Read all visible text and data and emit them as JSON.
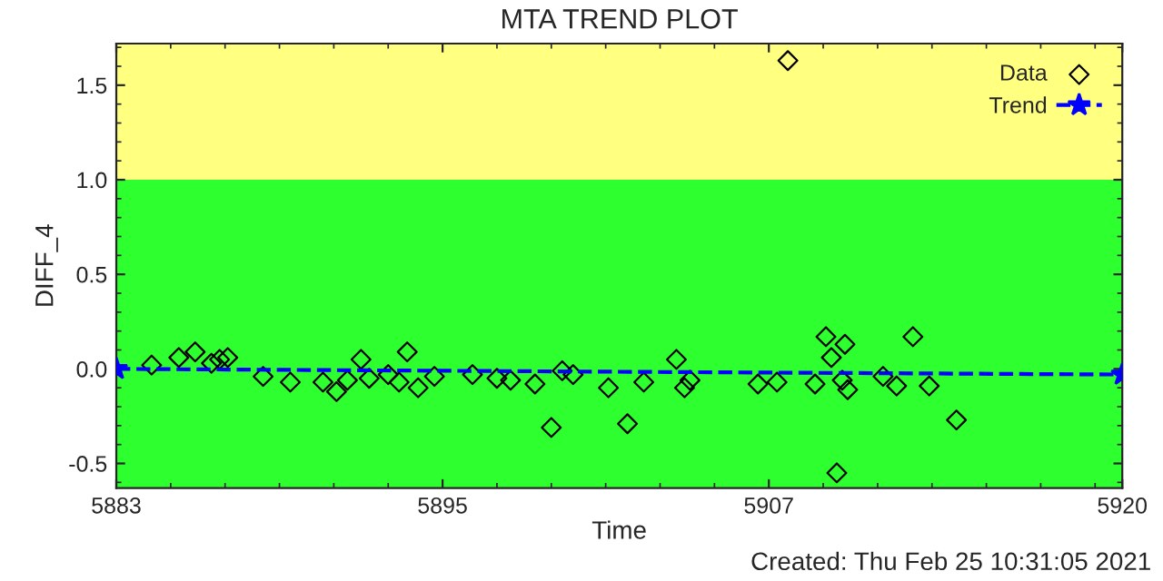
{
  "chart_data": {
    "type": "scatter",
    "title": "MTA TREND PLOT",
    "xlabel": "Time",
    "ylabel": "DIFF_4",
    "xlim": [
      5883,
      5920
    ],
    "xticks": [
      5883,
      5895,
      5907,
      5920
    ],
    "ylim": [
      -0.63,
      1.72
    ],
    "yticks": [
      -0.5,
      {
        "value": 0,
        "label": "0.0"
      },
      0.5,
      {
        "value": 1,
        "label": "1.0"
      },
      1.5
    ],
    "bands": [
      {
        "axis": "y",
        "from": -0.63,
        "to": 1.0,
        "color": "#2eff2e"
      },
      {
        "axis": "y",
        "from": 1.0,
        "to": 1.72,
        "color": "#ffff80"
      }
    ],
    "series": [
      {
        "name": "Data",
        "marker": "diamond",
        "color": "#000000",
        "x": [
          5884.3,
          5885.3,
          5885.9,
          5886.5,
          5886.8,
          5887.1,
          5888.4,
          5889.4,
          5890.6,
          5891.1,
          5891.5,
          5892.0,
          5892.3,
          5893.0,
          5893.4,
          5893.7,
          5894.1,
          5894.7,
          5896.1,
          5897.0,
          5897.5,
          5898.4,
          5899.0,
          5899.4,
          5899.8,
          5901.1,
          5901.8,
          5902.4,
          5903.6,
          5903.9,
          5904.1,
          5906.6,
          5907.3,
          5907.7,
          5908.7,
          5909.1,
          5909.3,
          5909.5,
          5909.7,
          5909.8,
          5909.9,
          5911.2,
          5911.7,
          5912.3,
          5912.9,
          5913.9
        ],
        "values": [
          0.02,
          0.06,
          0.09,
          0.03,
          0.05,
          0.06,
          -0.04,
          -0.07,
          -0.07,
          -0.12,
          -0.06,
          0.05,
          -0.05,
          -0.03,
          -0.07,
          0.09,
          -0.1,
          -0.04,
          -0.03,
          -0.05,
          -0.06,
          -0.08,
          -0.31,
          -0.01,
          -0.03,
          -0.1,
          -0.29,
          -0.07,
          0.05,
          -0.1,
          -0.06,
          -0.08,
          -0.07,
          1.63,
          -0.08,
          0.17,
          0.06,
          -0.55,
          -0.06,
          0.13,
          -0.11,
          -0.04,
          -0.09,
          0.17,
          -0.09,
          -0.27
        ]
      },
      {
        "name": "Trend",
        "type": "line",
        "marker": "star",
        "line_style": "dashed",
        "color": "#0000ff",
        "x": [
          5883,
          5920
        ],
        "values": [
          0.0,
          -0.03
        ]
      }
    ],
    "legend": "top right",
    "grid": false,
    "annotations": [
      "Created: Thu Feb 25 10:31:05 2021"
    ]
  }
}
